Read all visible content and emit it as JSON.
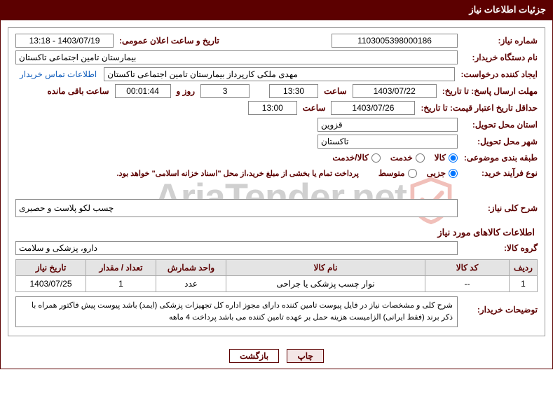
{
  "header_title": "جزئیات اطلاعات نیاز",
  "labels": {
    "need_number": "شماره نیاز:",
    "announce_datetime": "تاریخ و ساعت اعلان عمومی:",
    "buyer_org": "نام دستگاه خریدار:",
    "requester": "ایجاد کننده درخواست:",
    "contact_link": "اطلاعات تماس خریدار",
    "deadline_send": "مهلت ارسال پاسخ: تا تاریخ:",
    "hour": "ساعت",
    "days_and": "روز و",
    "remaining": "ساعت باقی مانده",
    "min_validity": "حداقل تاریخ اعتبار قیمت: تا تاریخ:",
    "delivery_province": "استان محل تحویل:",
    "delivery_city": "شهر محل تحویل:",
    "category": "طبقه بندی موضوعی:",
    "purchase_type": "نوع فرآیند خرید:",
    "purchase_note": "پرداخت تمام یا بخشی از مبلغ خرید،از محل \"اسناد خزانه اسلامی\" خواهد بود.",
    "general_desc": "شرح کلی نیاز:",
    "goods_info": "اطلاعات کالاهای مورد نیاز",
    "goods_group": "گروه کالا:",
    "buyer_notes": "توضیحات خریدار:"
  },
  "values": {
    "need_number": "1103005398000186",
    "announce_datetime": "1403/07/19 - 13:18",
    "buyer_org": "بیمارستان تامین اجتماعی تاکستان",
    "requester": "مهدی ملکی کارپرداز بیمارستان تامین اجتماعی تاکستان",
    "deadline_date": "1403/07/22",
    "deadline_time": "13:30",
    "remaining_days": "3",
    "remaining_time": "00:01:44",
    "validity_date": "1403/07/26",
    "validity_time": "13:00",
    "province": "قزوین",
    "city": "تاکستان",
    "general_desc": "چسب لکو پلاست و حصیری",
    "goods_group": "دارو، پزشکی و سلامت",
    "buyer_notes": "شرح کلی و مشخصات نیاز در فایل پیوست تامین کننده دارای مجوز اداره کل تجهیزات پزشکی (ایمد) باشد پیوست پیش فاکتور همراه با ذکر برند (فقط ایرانی) الزامیست هزینه حمل بر عهده تامین کننده می باشد  پرداخت 4 ماهه"
  },
  "radios": {
    "category": [
      {
        "label": "کالا",
        "checked": true
      },
      {
        "label": "خدمت",
        "checked": false
      },
      {
        "label": "کالا/خدمت",
        "checked": false
      }
    ],
    "purchase_type": [
      {
        "label": "جزیی",
        "checked": true
      },
      {
        "label": "متوسط",
        "checked": false
      }
    ]
  },
  "table": {
    "columns": [
      "ردیف",
      "کد کالا",
      "نام کالا",
      "واحد شمارش",
      "تعداد / مقدار",
      "تاریخ نیاز"
    ],
    "col_widths": [
      "40px",
      "120px",
      "auto",
      "100px",
      "100px",
      "100px"
    ],
    "header_bg": "#e4e4e4",
    "border_color": "#aaa",
    "header_color": "#5c0000",
    "rows": [
      [
        "1",
        "--",
        "نوار چسب پزشکی یا جراحی",
        "عدد",
        "1",
        "1403/07/25"
      ]
    ]
  },
  "buttons": {
    "print": "چاپ",
    "back": "بازگشت"
  },
  "colors": {
    "brand": "#5c0000",
    "link": "#1560bd",
    "border": "#888",
    "table_header_bg": "#e4e4e4"
  },
  "watermark": "AriaTender.net"
}
